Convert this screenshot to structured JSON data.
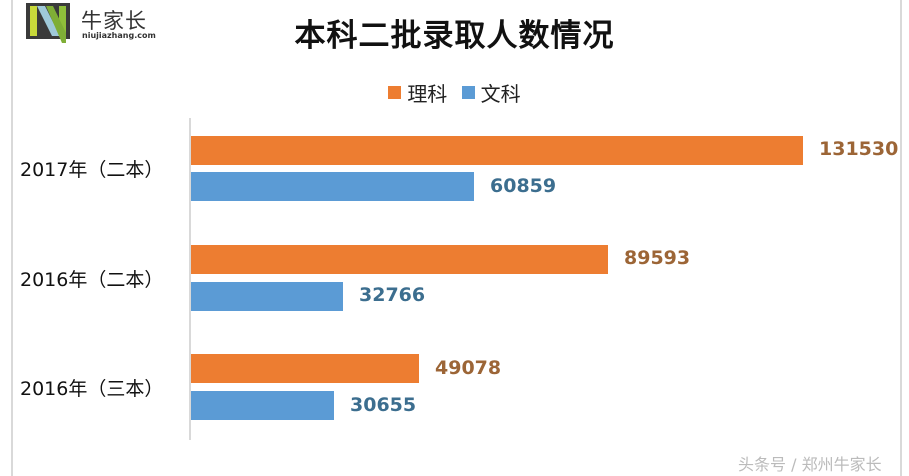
{
  "logo": {
    "text": "牛家长",
    "subtext": "niujiazhang.com"
  },
  "colors": {
    "science": "#ED7D31",
    "liberal": "#5B9BD5",
    "science_label": "#9C6536",
    "liberal_label": "#3C6E8F"
  },
  "watermark": "头条号 / 郑州牛家长",
  "chart_data": {
    "type": "bar",
    "orientation": "horizontal",
    "title": "本科二批录取人数情况",
    "categories": [
      "2017年（二本）",
      "2016年（二本）",
      "2016年（三本）"
    ],
    "series": [
      {
        "name": "理科",
        "color": "#ED7D31",
        "values": [
          131530,
          89593,
          49078
        ]
      },
      {
        "name": "文科",
        "color": "#5B9BD5",
        "values": [
          60859,
          32766,
          30655
        ]
      }
    ],
    "legend_position": "top",
    "data_labels": true,
    "grid": false,
    "xlabel": "",
    "ylabel": ""
  }
}
